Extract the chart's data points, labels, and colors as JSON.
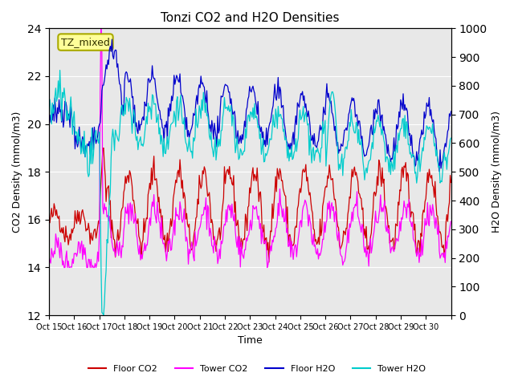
{
  "title": "Tonzi CO2 and H2O Densities",
  "xlabel": "Time",
  "ylabel_left": "CO2 Density (mmol/m3)",
  "ylabel_right": "H2O Density (mmol/m3)",
  "ylim_left": [
    12,
    24
  ],
  "ylim_right": [
    0,
    1000
  ],
  "yticks_left": [
    12,
    14,
    16,
    18,
    20,
    22,
    24
  ],
  "yticks_right": [
    0,
    100,
    200,
    300,
    400,
    500,
    600,
    700,
    800,
    900,
    1000
  ],
  "xtick_positions": [
    0,
    1,
    2,
    3,
    4,
    5,
    6,
    7,
    8,
    9,
    10,
    11,
    12,
    13,
    14,
    15,
    16
  ],
  "xtick_labels": [
    "Oct 15",
    "Oct 16",
    "Oct 17",
    "Oct 18",
    "Oct 19",
    "Oct 20",
    "Oct 21",
    "Oct 22",
    "Oct 23",
    "Oct 24",
    "Oct 25",
    "Oct 26",
    "Oct 27",
    "Oct 28",
    "Oct 29",
    "Oct 30",
    ""
  ],
  "annotation_text": "TZ_mixed",
  "annotation_box_color": "#ffff99",
  "annotation_border_color": "#aaaa00",
  "colors": {
    "floor_co2": "#cc0000",
    "tower_co2": "#ff00ff",
    "floor_h2o": "#0000cc",
    "tower_h2o": "#00cccc"
  },
  "legend_labels": [
    "Floor CO2",
    "Tower CO2",
    "Floor H2O",
    "Tower H2O"
  ],
  "background_color": "#e8e8e8",
  "n_points": 480,
  "seed": 42
}
